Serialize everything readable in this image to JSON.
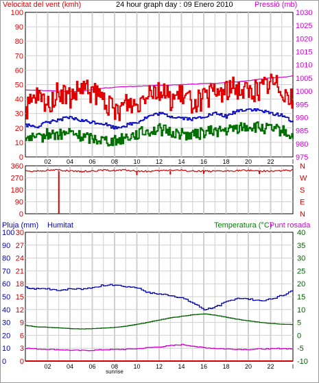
{
  "header": {
    "wind_label": "Velocitat del vent (kmh)",
    "title": "24 hour graph day : 09 Enero 2010",
    "pressure_label": "Pressió (mb)",
    "rain_label": "Pluja (mm)",
    "humidity_label": "Humitat",
    "temperature_label": "Temperatura (°C)",
    "dewpoint_label": "Punt rosada"
  },
  "colors": {
    "wind_gust": "#e00000",
    "wind_avg": "#0000c0",
    "wind_min": "#007000",
    "pressure": "#d000d0",
    "direction": "#d00000",
    "humidity": "#0000b0",
    "temperature": "#006000",
    "dewpoint": "#d000d0",
    "rain": "#d00000",
    "grid": "#cfcfcf"
  },
  "chart_data": [
    {
      "type": "line",
      "title": "Velocitat del vent (kmh)",
      "x_ticks": [
        "02",
        "04",
        "06",
        "08",
        "10",
        "12",
        "14",
        "16",
        "18",
        "20",
        "22",
        "l"
      ],
      "x_annotation": "sunrise",
      "left_axis": {
        "ticks": [
          "0",
          "10",
          "20",
          "30",
          "40",
          "50",
          "60",
          "70",
          "80",
          "90",
          "100"
        ],
        "range": [
          0,
          100
        ]
      },
      "right_axis": {
        "ticks": [
          "975",
          "980",
          "985",
          "990",
          "995",
          "1000",
          "1005",
          "1010",
          "1015",
          "1020",
          "1025",
          "1030"
        ],
        "range": [
          975,
          1030
        ]
      },
      "series": [
        {
          "name": "gust",
          "axis": "left",
          "x": [
            0,
            1,
            2,
            3,
            4,
            5,
            6,
            7,
            8,
            9,
            10,
            11,
            12,
            13,
            14,
            15,
            16,
            17,
            18,
            19,
            20,
            21,
            22,
            23,
            24
          ],
          "values": [
            32,
            41,
            36,
            45,
            40,
            47,
            44,
            40,
            30,
            38,
            36,
            48,
            46,
            40,
            42,
            38,
            40,
            44,
            46,
            48,
            45,
            47,
            52,
            48,
            38
          ]
        },
        {
          "name": "average",
          "axis": "left",
          "x": [
            0,
            1,
            2,
            3,
            4,
            5,
            6,
            7,
            8,
            9,
            10,
            11,
            12,
            13,
            14,
            15,
            16,
            17,
            18,
            19,
            20,
            21,
            22,
            23,
            24
          ],
          "values": [
            22,
            21,
            24,
            26,
            27,
            25,
            24,
            23,
            20,
            22,
            24,
            28,
            30,
            28,
            27,
            26,
            28,
            30,
            28,
            32,
            33,
            32,
            30,
            29,
            24
          ]
        },
        {
          "name": "minimum",
          "axis": "left",
          "x": [
            0,
            1,
            2,
            3,
            4,
            5,
            6,
            7,
            8,
            9,
            10,
            11,
            12,
            13,
            14,
            15,
            16,
            17,
            18,
            19,
            20,
            21,
            22,
            23,
            24
          ],
          "values": [
            14,
            12,
            16,
            15,
            17,
            14,
            13,
            12,
            11,
            14,
            16,
            18,
            19,
            17,
            16,
            15,
            17,
            18,
            18,
            20,
            21,
            20,
            19,
            18,
            14
          ]
        },
        {
          "name": "Pressió (mb)",
          "axis": "right",
          "x": [
            0,
            1,
            2,
            3,
            4,
            5,
            6,
            7,
            8,
            9,
            10,
            11,
            12,
            13,
            14,
            15,
            16,
            17,
            18,
            19,
            20,
            21,
            22,
            23,
            24
          ],
          "values": [
            1000.5,
            1000.4,
            1000.2,
            1000.0,
            999.9,
            1000.0,
            1000.6,
            1001.2,
            1001.5,
            1001.7,
            1001.9,
            1002.0,
            1002.2,
            1002.3,
            1002.5,
            1002.7,
            1002.9,
            1003.0,
            1003.3,
            1003.6,
            1004.0,
            1004.5,
            1005.0,
            1005.3,
            1005.8
          ]
        }
      ]
    },
    {
      "type": "line",
      "title": "Wind direction",
      "left_axis": {
        "ticks": [
          "360",
          "270",
          "180",
          "90",
          "0"
        ],
        "range": [
          0,
          360
        ]
      },
      "right_axis": {
        "ticks": [
          "N",
          "W",
          "S",
          "E",
          "N"
        ]
      },
      "series": [
        {
          "name": "direction",
          "x": [
            0,
            1,
            2,
            3,
            4,
            5,
            6,
            7,
            8,
            9,
            10,
            11,
            12,
            13,
            14,
            15,
            16,
            17,
            18,
            19,
            20,
            21,
            22,
            23,
            24
          ],
          "values": [
            318,
            322,
            326,
            330,
            320,
            316,
            322,
            326,
            325,
            328,
            320,
            318,
            322,
            328,
            326,
            320,
            322,
            318,
            320,
            324,
            326,
            322,
            320,
            324,
            326
          ]
        }
      ]
    },
    {
      "type": "line",
      "title": "Pluja / Humitat / Temperatura / Punt rosada",
      "left_axis_rain": {
        "ticks": [
          "0",
          "3",
          "6",
          "9",
          "12",
          "15",
          "18",
          "21",
          "24",
          "27",
          "30"
        ],
        "range": [
          0,
          30
        ]
      },
      "left_axis_humidity": {
        "ticks": [
          "0",
          "10",
          "20",
          "30",
          "40",
          "50",
          "60",
          "70",
          "80",
          "90",
          "100"
        ],
        "range": [
          0,
          100
        ]
      },
      "right_axis": {
        "ticks": [
          "-10",
          "-5",
          "0",
          "5",
          "10",
          "15",
          "20",
          "25",
          "30",
          "35",
          "40"
        ],
        "range": [
          -10,
          40
        ]
      },
      "series": [
        {
          "name": "Humitat",
          "axis": "humidity",
          "x": [
            0,
            1,
            2,
            3,
            4,
            5,
            6,
            7,
            8,
            9,
            10,
            11,
            12,
            13,
            14,
            15,
            16,
            17,
            18,
            19,
            20,
            21,
            22,
            23,
            24
          ],
          "values": [
            57,
            56,
            56,
            55,
            56,
            56,
            57,
            59,
            59,
            58,
            57,
            53,
            52,
            51,
            49,
            45,
            40,
            42,
            46,
            49,
            48,
            47,
            48,
            51,
            55
          ]
        },
        {
          "name": "Temperatura (°C)",
          "axis": "right",
          "x": [
            0,
            1,
            2,
            3,
            4,
            5,
            6,
            7,
            8,
            9,
            10,
            11,
            12,
            13,
            14,
            15,
            16,
            17,
            18,
            19,
            20,
            21,
            22,
            23,
            24
          ],
          "values": [
            3.8,
            3.3,
            3.1,
            2.9,
            2.6,
            2.5,
            2.6,
            2.8,
            3.1,
            3.6,
            4.3,
            5.1,
            6.0,
            6.8,
            7.4,
            8.0,
            8.3,
            7.8,
            7.0,
            6.2,
            5.6,
            5.0,
            4.6,
            4.3,
            4.2
          ]
        },
        {
          "name": "Punt rosada",
          "axis": "right",
          "x": [
            0,
            1,
            2,
            3,
            4,
            5,
            6,
            7,
            8,
            9,
            10,
            11,
            12,
            13,
            14,
            15,
            16,
            17,
            18,
            19,
            20,
            21,
            22,
            23,
            24
          ],
          "values": [
            -5.0,
            -5.3,
            -5.4,
            -5.6,
            -5.8,
            -5.9,
            -5.8,
            -5.6,
            -5.5,
            -5.4,
            -5.2,
            -4.8,
            -4.5,
            -4.0,
            -3.6,
            -4.2,
            -4.8,
            -5.1,
            -5.3,
            -5.4,
            -5.5,
            -5.3,
            -5.2,
            -5.1,
            -5.3
          ]
        },
        {
          "name": "Pluja (mm)",
          "axis": "rain",
          "x": [
            0,
            24
          ],
          "values": [
            0,
            0
          ]
        }
      ]
    }
  ]
}
